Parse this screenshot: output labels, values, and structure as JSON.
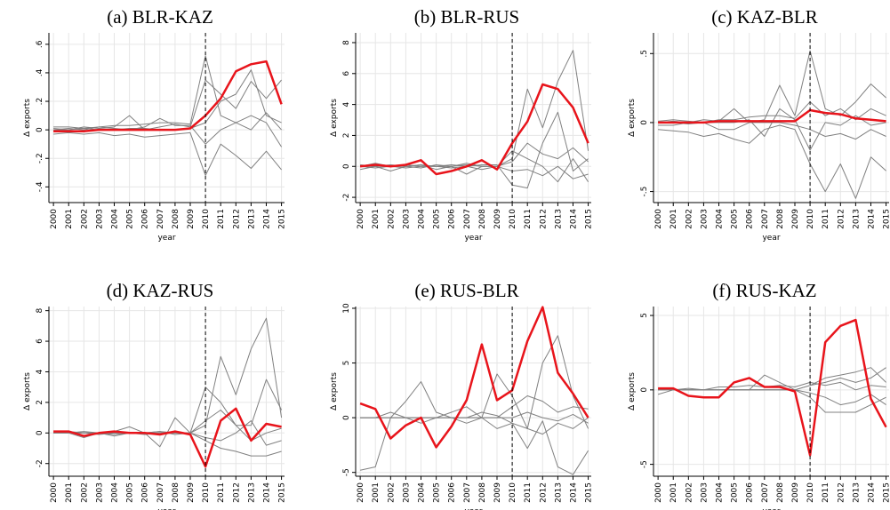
{
  "chart_data": [
    {
      "type": "line",
      "title": "(a) BLR-KAZ",
      "xlabel": "year",
      "ylabel": "Δ exports",
      "x": [
        2000,
        2001,
        2002,
        2003,
        2004,
        2005,
        2006,
        2007,
        2008,
        2009,
        2010,
        2011,
        2012,
        2013,
        2014,
        2015
      ],
      "xlim": [
        1999.7,
        2015.2
      ],
      "xticks": [
        2000,
        2001,
        2002,
        2003,
        2004,
        2005,
        2006,
        2007,
        2008,
        2009,
        2010,
        2011,
        2012,
        2013,
        2014,
        2015
      ],
      "ylim": [
        -0.51,
        0.68
      ],
      "yticks": [
        {
          "value": -0.4,
          "label": "-.4"
        },
        {
          "value": -0.2,
          "label": "-.2"
        },
        0,
        {
          "value": 0.2,
          "label": ".2"
        },
        {
          "value": 0.4,
          "label": ".4"
        },
        {
          "value": 0.6,
          "label": ".6"
        }
      ],
      "grid": true,
      "vline": 2010,
      "series": [
        {
          "color": "#808080",
          "values": [
            0.02,
            0.02,
            0.01,
            0.02,
            0.03,
            0.03,
            0.04,
            0.05,
            0.05,
            0.04,
            0.52,
            0.1,
            0.05,
            0.0,
            0.12,
            0.0
          ]
        },
        {
          "color": "#808080",
          "values": [
            -0.03,
            -0.02,
            -0.03,
            -0.02,
            -0.04,
            -0.03,
            -0.05,
            -0.04,
            -0.03,
            -0.02,
            -0.32,
            -0.1,
            -0.18,
            -0.27,
            -0.15,
            -0.28
          ]
        },
        {
          "color": "#808080",
          "values": [
            0.01,
            0.0,
            0.02,
            0.01,
            0.02,
            0.1,
            0.0,
            0.02,
            0.04,
            0.02,
            0.35,
            0.25,
            0.15,
            0.34,
            0.22,
            0.35
          ]
        },
        {
          "color": "#808080",
          "values": [
            0.0,
            0.01,
            0.0,
            0.02,
            0.01,
            0.0,
            0.02,
            0.08,
            0.03,
            0.03,
            -0.1,
            0.0,
            0.05,
            0.1,
            0.05,
            -0.12
          ]
        },
        {
          "color": "#808080",
          "values": [
            0.0,
            0.0,
            0.01,
            0.0,
            0.0,
            0.01,
            0.01,
            0.0,
            0.0,
            0.01,
            0.05,
            0.2,
            0.25,
            0.42,
            0.1,
            0.05
          ]
        },
        {
          "color": "#e8141b",
          "values": [
            -0.01,
            -0.01,
            -0.01,
            0,
            0,
            0,
            0,
            0,
            0,
            0.01,
            0.1,
            0.22,
            0.41,
            0.46,
            0.48,
            0.18
          ]
        }
      ]
    },
    {
      "type": "line",
      "title": "(b) BLR-RUS",
      "xlabel": "year",
      "ylabel": "Δ exports",
      "x": [
        2000,
        2001,
        2002,
        2003,
        2004,
        2005,
        2006,
        2007,
        2008,
        2009,
        2010,
        2011,
        2012,
        2013,
        2014,
        2015
      ],
      "xlim": [
        1999.7,
        2015.2
      ],
      "xticks": [
        2000,
        2001,
        2002,
        2003,
        2004,
        2005,
        2006,
        2007,
        2008,
        2009,
        2010,
        2011,
        2012,
        2013,
        2014,
        2015
      ],
      "ylim": [
        -2.34,
        8.63
      ],
      "yticks": [
        -2,
        0,
        2,
        4,
        6,
        8
      ],
      "grid": true,
      "vline": 2010,
      "series": [
        {
          "color": "#808080",
          "values": [
            0.1,
            0,
            -0.3,
            0,
            0.1,
            -0.2,
            0,
            -0.5,
            0,
            0,
            0.5,
            5,
            2.5,
            5.5,
            7.5,
            1
          ]
        },
        {
          "color": "#808080",
          "values": [
            0,
            0.2,
            0,
            -0.1,
            0,
            0,
            0.1,
            0,
            0.1,
            0.1,
            -1.2,
            -1.4,
            1.5,
            3.5,
            -0.3,
            0.5
          ]
        },
        {
          "color": "#808080",
          "values": [
            -0.2,
            0,
            0.1,
            0,
            -0.1,
            0.1,
            0,
            0.2,
            0,
            0,
            1,
            0.5,
            0,
            -1,
            0.5,
            -1
          ]
        },
        {
          "color": "#808080",
          "values": [
            0,
            0,
            0,
            0.1,
            0,
            0,
            -0.1,
            0,
            -0.2,
            0,
            0.3,
            1.5,
            0.8,
            0.5,
            1.2,
            0.3
          ]
        },
        {
          "color": "#808080",
          "values": [
            0,
            -0.1,
            0,
            0,
            0.1,
            0,
            0,
            0.1,
            0,
            0,
            -0.3,
            -0.2,
            -0.6,
            0,
            -0.8,
            -0.5
          ]
        },
        {
          "color": "#e8141b",
          "values": [
            0,
            0.1,
            0,
            0.1,
            0.4,
            -0.5,
            -0.3,
            0,
            0.4,
            -0.2,
            1.5,
            2.9,
            5.3,
            5.0,
            3.8,
            1.5
          ]
        }
      ]
    },
    {
      "type": "line",
      "title": "(c) KAZ-BLR",
      "xlabel": "year",
      "ylabel": "Δ exports",
      "x": [
        2000,
        2001,
        2002,
        2003,
        2004,
        2005,
        2006,
        2007,
        2008,
        2009,
        2010,
        2011,
        2012,
        2013,
        2014,
        2015
      ],
      "xlim": [
        1999.7,
        2015.2
      ],
      "xticks": [
        2000,
        2001,
        2002,
        2003,
        2004,
        2005,
        2006,
        2007,
        2008,
        2009,
        2010,
        2011,
        2012,
        2013,
        2014,
        2015
      ],
      "ylim": [
        -0.58,
        0.65
      ],
      "yticks": [
        {
          "value": -0.5,
          "label": "-.5"
        },
        0,
        {
          "value": 0.5,
          "label": ".5"
        }
      ],
      "grid": true,
      "vline": 2010,
      "series": [
        {
          "color": "#808080",
          "values": [
            -0.05,
            -0.06,
            -0.07,
            -0.1,
            -0.08,
            -0.12,
            -0.15,
            -0.05,
            -0.02,
            -0.05,
            -0.3,
            -0.5,
            -0.3,
            -0.55,
            -0.25,
            -0.35
          ]
        },
        {
          "color": "#808080",
          "values": [
            0,
            0.01,
            0,
            0.02,
            0.01,
            0.1,
            0,
            0.02,
            0.27,
            0.05,
            0.52,
            0.1,
            0.05,
            0.15,
            0.28,
            0.18
          ]
        },
        {
          "color": "#808080",
          "values": [
            -0.02,
            -0.02,
            0,
            0,
            -0.05,
            -0.05,
            0,
            0,
            0,
            -0.02,
            -0.05,
            -0.1,
            -0.08,
            -0.12,
            -0.05,
            -0.1
          ]
        },
        {
          "color": "#808080",
          "values": [
            0.01,
            0.02,
            0.01,
            0.0,
            0.02,
            0.02,
            0.04,
            0.05,
            0.05,
            0.03,
            0.15,
            0.05,
            0.1,
            0.02,
            0.1,
            0.05
          ]
        },
        {
          "color": "#808080",
          "values": [
            0,
            0,
            -0.01,
            0,
            0,
            0,
            0.02,
            -0.1,
            0.1,
            0.02,
            -0.2,
            0.0,
            -0.02,
            0.05,
            -0.02,
            0.0
          ]
        },
        {
          "color": "#e8141b",
          "values": [
            0,
            0,
            0,
            0,
            0.01,
            0.01,
            0.01,
            0.01,
            0.01,
            0.01,
            0.09,
            0.07,
            0.06,
            0.03,
            0.02,
            0.01
          ]
        }
      ]
    },
    {
      "type": "line",
      "title": "(d) KAZ-RUS",
      "xlabel": "year",
      "ylabel": "Δ exports",
      "x": [
        2000,
        2001,
        2002,
        2003,
        2004,
        2005,
        2006,
        2007,
        2008,
        2009,
        2010,
        2011,
        2012,
        2013,
        2014,
        2015
      ],
      "xlim": [
        1999.7,
        2015.2
      ],
      "xticks": [
        2000,
        2001,
        2002,
        2003,
        2004,
        2005,
        2006,
        2007,
        2008,
        2009,
        2010,
        2011,
        2012,
        2013,
        2014,
        2015
      ],
      "ylim": [
        -2.83,
        8.27
      ],
      "yticks": [
        -2,
        0,
        2,
        4,
        6,
        8
      ],
      "grid": true,
      "vline": 2010,
      "series": [
        {
          "color": "#808080",
          "values": [
            0,
            0,
            0.1,
            0,
            -0.1,
            0,
            0,
            0.1,
            0,
            0,
            0.5,
            5,
            2.5,
            5.5,
            7.5,
            1
          ]
        },
        {
          "color": "#808080",
          "values": [
            0,
            0,
            -0.3,
            0,
            0.1,
            0.4,
            0,
            -0.9,
            1,
            0,
            3,
            2,
            0.5,
            0.5,
            3.5,
            1.5
          ]
        },
        {
          "color": "#808080",
          "values": [
            0,
            0.1,
            0,
            0,
            -0.2,
            0,
            -0.1,
            0,
            0,
            0,
            -0.5,
            -1,
            -1.2,
            -1.5,
            -1.5,
            -1.2
          ]
        },
        {
          "color": "#808080",
          "values": [
            0,
            0,
            0,
            0,
            0,
            0,
            0,
            0,
            0,
            0,
            0.8,
            1.5,
            0.5,
            -0.5,
            0,
            0.3
          ]
        },
        {
          "color": "#808080",
          "values": [
            0,
            0,
            0,
            -0.1,
            0,
            0,
            0,
            0.1,
            -0.1,
            0,
            -0.3,
            -0.5,
            0,
            0.8,
            -0.8,
            -0.5
          ]
        },
        {
          "color": "#e8141b",
          "values": [
            0.1,
            0.1,
            -0.2,
            0,
            0.1,
            0,
            0,
            -0.1,
            0.1,
            -0.1,
            -2.2,
            0.8,
            1.6,
            -0.5,
            0.6,
            0.4
          ]
        }
      ]
    },
    {
      "type": "line",
      "title": "(e) RUS-BLR",
      "xlabel": "year",
      "ylabel": "Δ exports",
      "x": [
        2000,
        2001,
        2002,
        2003,
        2004,
        2005,
        2006,
        2007,
        2008,
        2009,
        2010,
        2011,
        2012,
        2013,
        2014,
        2015
      ],
      "xlim": [
        1999.7,
        2015.2
      ],
      "xticks": [
        2000,
        2001,
        2002,
        2003,
        2004,
        2005,
        2006,
        2007,
        2008,
        2009,
        2010,
        2011,
        2012,
        2013,
        2014,
        2015
      ],
      "ylim": [
        -5.35,
        10.16
      ],
      "yticks": [
        -5,
        0,
        5,
        10
      ],
      "grid": true,
      "vline": 2010,
      "series": [
        {
          "color": "#808080",
          "values": [
            -4.8,
            -4.5,
            0,
            1.5,
            3.3,
            0.5,
            0,
            -0.5,
            0,
            4,
            2,
            -1,
            5,
            7.5,
            2,
            -1
          ]
        },
        {
          "color": "#808080",
          "values": [
            0,
            0,
            0.5,
            0,
            -0.5,
            0,
            0.5,
            1,
            0,
            -1,
            -0.5,
            -2.8,
            -0.3,
            -4.5,
            -5.2,
            -3
          ]
        },
        {
          "color": "#808080",
          "values": [
            0,
            0,
            0,
            0,
            0,
            0,
            0,
            0,
            0,
            0,
            1,
            2,
            1.5,
            0.5,
            1,
            0.8
          ]
        },
        {
          "color": "#808080",
          "values": [
            0,
            0,
            0,
            0,
            0,
            0,
            0,
            0,
            0.5,
            0.2,
            -0.5,
            -1,
            -1.5,
            -0.5,
            -1,
            0
          ]
        },
        {
          "color": "#808080",
          "values": [
            0,
            0,
            0,
            0,
            0,
            0,
            0,
            0,
            0,
            0,
            0,
            0.5,
            0,
            -0.3,
            0.3,
            -0.5
          ]
        },
        {
          "color": "#e8141b",
          "values": [
            1.3,
            0.8,
            -1.9,
            -0.7,
            0,
            -2.7,
            -0.8,
            1.6,
            6.7,
            1.6,
            2.5,
            7,
            10.1,
            4.1,
            2.2,
            0
          ]
        }
      ]
    },
    {
      "type": "line",
      "title": "(f) RUS-KAZ",
      "xlabel": "year",
      "ylabel": "Δ exports",
      "x": [
        2000,
        2001,
        2002,
        2003,
        2004,
        2005,
        2006,
        2007,
        2008,
        2009,
        2010,
        2011,
        2012,
        2013,
        2014,
        2015
      ],
      "xlim": [
        1999.7,
        2015.2
      ],
      "xticks": [
        2000,
        2001,
        2002,
        2003,
        2004,
        2005,
        2006,
        2007,
        2008,
        2009,
        2010,
        2011,
        2012,
        2013,
        2014,
        2015
      ],
      "ylim": [
        -5.8,
        5.6
      ],
      "yticks": [
        -5,
        0,
        5
      ],
      "grid": true,
      "vline": 2010,
      "series": [
        {
          "color": "#808080",
          "values": [
            0,
            0,
            0,
            0,
            0,
            0,
            0,
            0,
            0,
            0,
            -0.5,
            -1.5,
            -1.5,
            -1.5,
            -1,
            -0.5
          ]
        },
        {
          "color": "#808080",
          "values": [
            0,
            0,
            0,
            0,
            0,
            0,
            0,
            1,
            0.5,
            0,
            0.3,
            0.8,
            1,
            1.2,
            1.5,
            0.5
          ]
        },
        {
          "color": "#808080",
          "values": [
            0,
            0,
            0,
            0,
            0,
            0,
            0,
            0,
            0,
            0,
            0.3,
            0.5,
            0.8,
            0.5,
            0.8,
            1.5
          ]
        },
        {
          "color": "#808080",
          "values": [
            0,
            0,
            0,
            0,
            0,
            0,
            0,
            0,
            0,
            0,
            -0.2,
            -0.5,
            -1,
            -0.8,
            -0.3,
            -1
          ]
        },
        {
          "color": "#808080",
          "values": [
            -0.3,
            0,
            0.1,
            0,
            0.2,
            0.2,
            0.3,
            0.2,
            0.3,
            0.2,
            0.5,
            0.3,
            0.5,
            0,
            0.3,
            0.2
          ]
        },
        {
          "color": "#e8141b",
          "values": [
            0.1,
            0.1,
            -0.4,
            -0.5,
            -0.5,
            0.5,
            0.8,
            0.2,
            0.2,
            -0.1,
            -4.4,
            3.2,
            4.3,
            4.7,
            -0.6,
            -2.5
          ]
        }
      ]
    }
  ]
}
